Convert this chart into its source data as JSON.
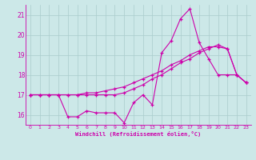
{
  "xlabel": "Windchill (Refroidissement éolien,°C)",
  "bg_color": "#cce8e8",
  "line_color": "#cc00aa",
  "grid_color": "#aacccc",
  "x_ticks": [
    0,
    1,
    2,
    3,
    4,
    5,
    6,
    7,
    8,
    9,
    10,
    11,
    12,
    13,
    14,
    15,
    16,
    17,
    18,
    19,
    20,
    21,
    22,
    23
  ],
  "ylim": [
    15.5,
    21.5
  ],
  "xlim": [
    -0.5,
    23.5
  ],
  "yticks": [
    16,
    17,
    18,
    19,
    20,
    21
  ],
  "line1_x": [
    0,
    1,
    2,
    3,
    4,
    5,
    6,
    7,
    8,
    9,
    10,
    11,
    12,
    13,
    14,
    15,
    16,
    17,
    18,
    19,
    20,
    21,
    22,
    23
  ],
  "line1_y": [
    17.0,
    17.0,
    17.0,
    17.0,
    15.9,
    15.9,
    16.2,
    16.1,
    16.1,
    16.1,
    15.6,
    16.6,
    17.0,
    16.5,
    19.1,
    19.7,
    20.8,
    21.3,
    19.6,
    18.8,
    18.0,
    18.0,
    18.0,
    17.6
  ],
  "line2_x": [
    0,
    1,
    2,
    3,
    4,
    5,
    6,
    7,
    8,
    9,
    10,
    11,
    12,
    13,
    14,
    15,
    16,
    17,
    18,
    19,
    20,
    21,
    22,
    23
  ],
  "line2_y": [
    17.0,
    17.0,
    17.0,
    17.0,
    17.0,
    17.0,
    17.1,
    17.1,
    17.2,
    17.3,
    17.4,
    17.6,
    17.8,
    18.0,
    18.2,
    18.5,
    18.7,
    19.0,
    19.2,
    19.4,
    19.4,
    19.3,
    18.0,
    17.6
  ],
  "line3_x": [
    0,
    1,
    2,
    3,
    4,
    5,
    6,
    7,
    8,
    9,
    10,
    11,
    12,
    13,
    14,
    15,
    16,
    17,
    18,
    19,
    20,
    21,
    22,
    23
  ],
  "line3_y": [
    17.0,
    17.0,
    17.0,
    17.0,
    17.0,
    17.0,
    17.0,
    17.0,
    17.0,
    17.0,
    17.1,
    17.3,
    17.5,
    17.8,
    18.0,
    18.3,
    18.6,
    18.8,
    19.1,
    19.3,
    19.5,
    19.3,
    18.0,
    17.6
  ]
}
